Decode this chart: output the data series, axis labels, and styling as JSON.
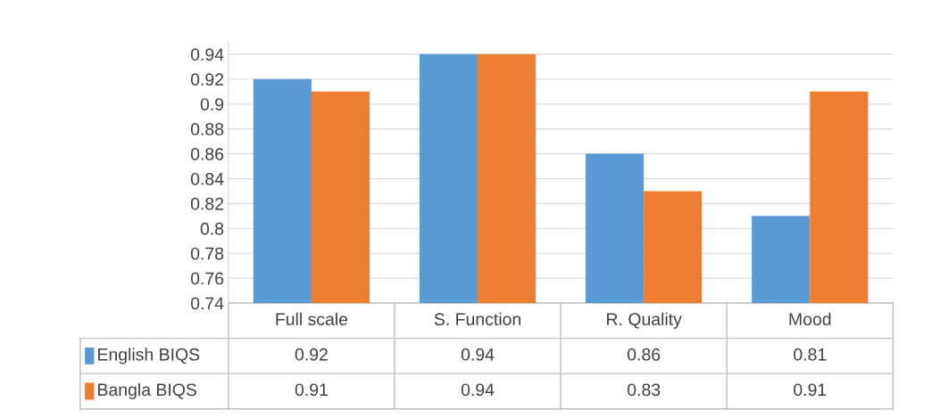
{
  "chart_data": {
    "type": "bar",
    "categories": [
      "Full scale",
      "S. Function",
      "R. Quality",
      "Mood"
    ],
    "series": [
      {
        "name": "English BIQS",
        "color": "#5b9bd5",
        "values": [
          0.92,
          0.94,
          0.86,
          0.81
        ]
      },
      {
        "name": "Bangla BIQS",
        "color": "#ed7d31",
        "values": [
          0.91,
          0.94,
          0.83,
          0.91
        ]
      }
    ],
    "ylim": [
      0.74,
      0.95
    ],
    "yticks": [
      0.74,
      0.76,
      0.78,
      0.8,
      0.82,
      0.84,
      0.86,
      0.88,
      0.9,
      0.92,
      0.94
    ],
    "grid": "y",
    "legend": "bottom",
    "data_labels": true
  }
}
